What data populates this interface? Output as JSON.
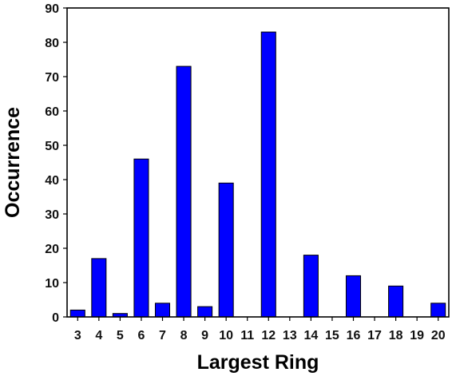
{
  "chart_data": {
    "type": "bar",
    "title": "",
    "xlabel": "Largest Ring",
    "ylabel": "Occurrence",
    "categories": [
      "3",
      "4",
      "5",
      "6",
      "7",
      "8",
      "9",
      "10",
      "11",
      "12",
      "13",
      "14",
      "15",
      "16",
      "17",
      "18",
      "19",
      "20"
    ],
    "values": [
      2,
      17,
      1,
      46,
      4,
      73,
      3,
      39,
      0,
      83,
      0,
      18,
      0,
      12,
      0,
      9,
      0,
      4
    ],
    "ylim": [
      0,
      90
    ],
    "yticks": [
      0,
      10,
      20,
      30,
      40,
      50,
      60,
      70,
      80,
      90
    ],
    "grid": false,
    "legend": "none",
    "bar_color": "#0000ff",
    "bar_edge_color": "#000000"
  }
}
